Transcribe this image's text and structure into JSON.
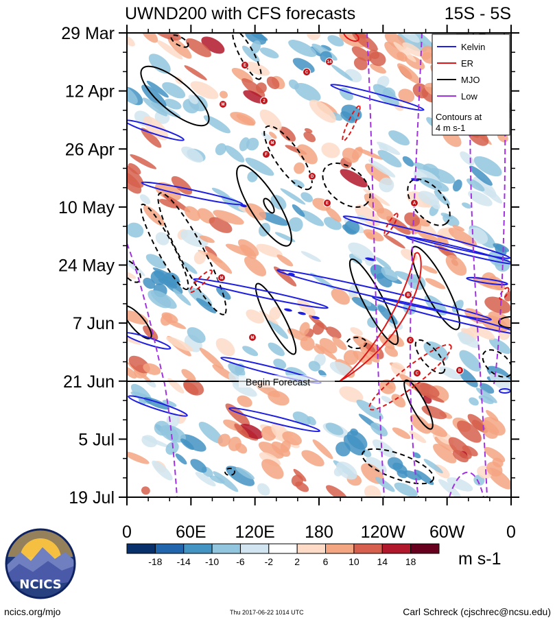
{
  "chart_data": {
    "type": "heatmap",
    "title": "UWND200 with CFS forecasts",
    "region_label": "15S - 5S",
    "units_label": "m s-1",
    "x_ticks": [
      "0",
      "60E",
      "120E",
      "180",
      "120W",
      "60W",
      "0"
    ],
    "x_range_deg_east": [
      0,
      360
    ],
    "y_ticks": [
      "29 Mar",
      "12 Apr",
      "26 Apr",
      "10 May",
      "24 May",
      "7 Jun",
      "21 Jun",
      "5 Jul",
      "19 Jul"
    ],
    "y_range": [
      "2017-03-29",
      "2017-07-19"
    ],
    "forecast_start": "2017-06-21",
    "forecast_annotation": "Begin Forecast",
    "colorbar": {
      "ticks": [
        "-18",
        "-14",
        "-10",
        "-6",
        "-2",
        "2",
        "6",
        "10",
        "14",
        "18"
      ],
      "colors": [
        "#08306b",
        "#2166ac",
        "#4393c3",
        "#92c5de",
        "#d1e5f0",
        "#ffffff",
        "#fddbc7",
        "#f4a582",
        "#d6604d",
        "#b2182b",
        "#67001f"
      ]
    },
    "legend": {
      "placement": "top-right",
      "entries": [
        {
          "name": "Kelvin",
          "color": "#1f1fe0"
        },
        {
          "name": "ER",
          "color": "#e01414"
        },
        {
          "name": "MJO",
          "color": "#000000"
        },
        {
          "name": "Low",
          "color": "#a030e0"
        }
      ],
      "note_line1": "Contours at",
      "note_line2": "4 m s-1"
    },
    "storm_labels": [
      "E",
      "C",
      "14",
      "M",
      "2",
      "M",
      "F",
      "D",
      "E",
      "A",
      "M",
      "B",
      "M",
      "C",
      "C",
      "B"
    ]
  },
  "footer": {
    "left": "ncics.org/mjo",
    "center": "Thu 2017-06-22 1014 UTC",
    "right": "Carl Schreck (cjschrec@ncsu.edu)"
  },
  "logo": {
    "text": "NCICS"
  }
}
